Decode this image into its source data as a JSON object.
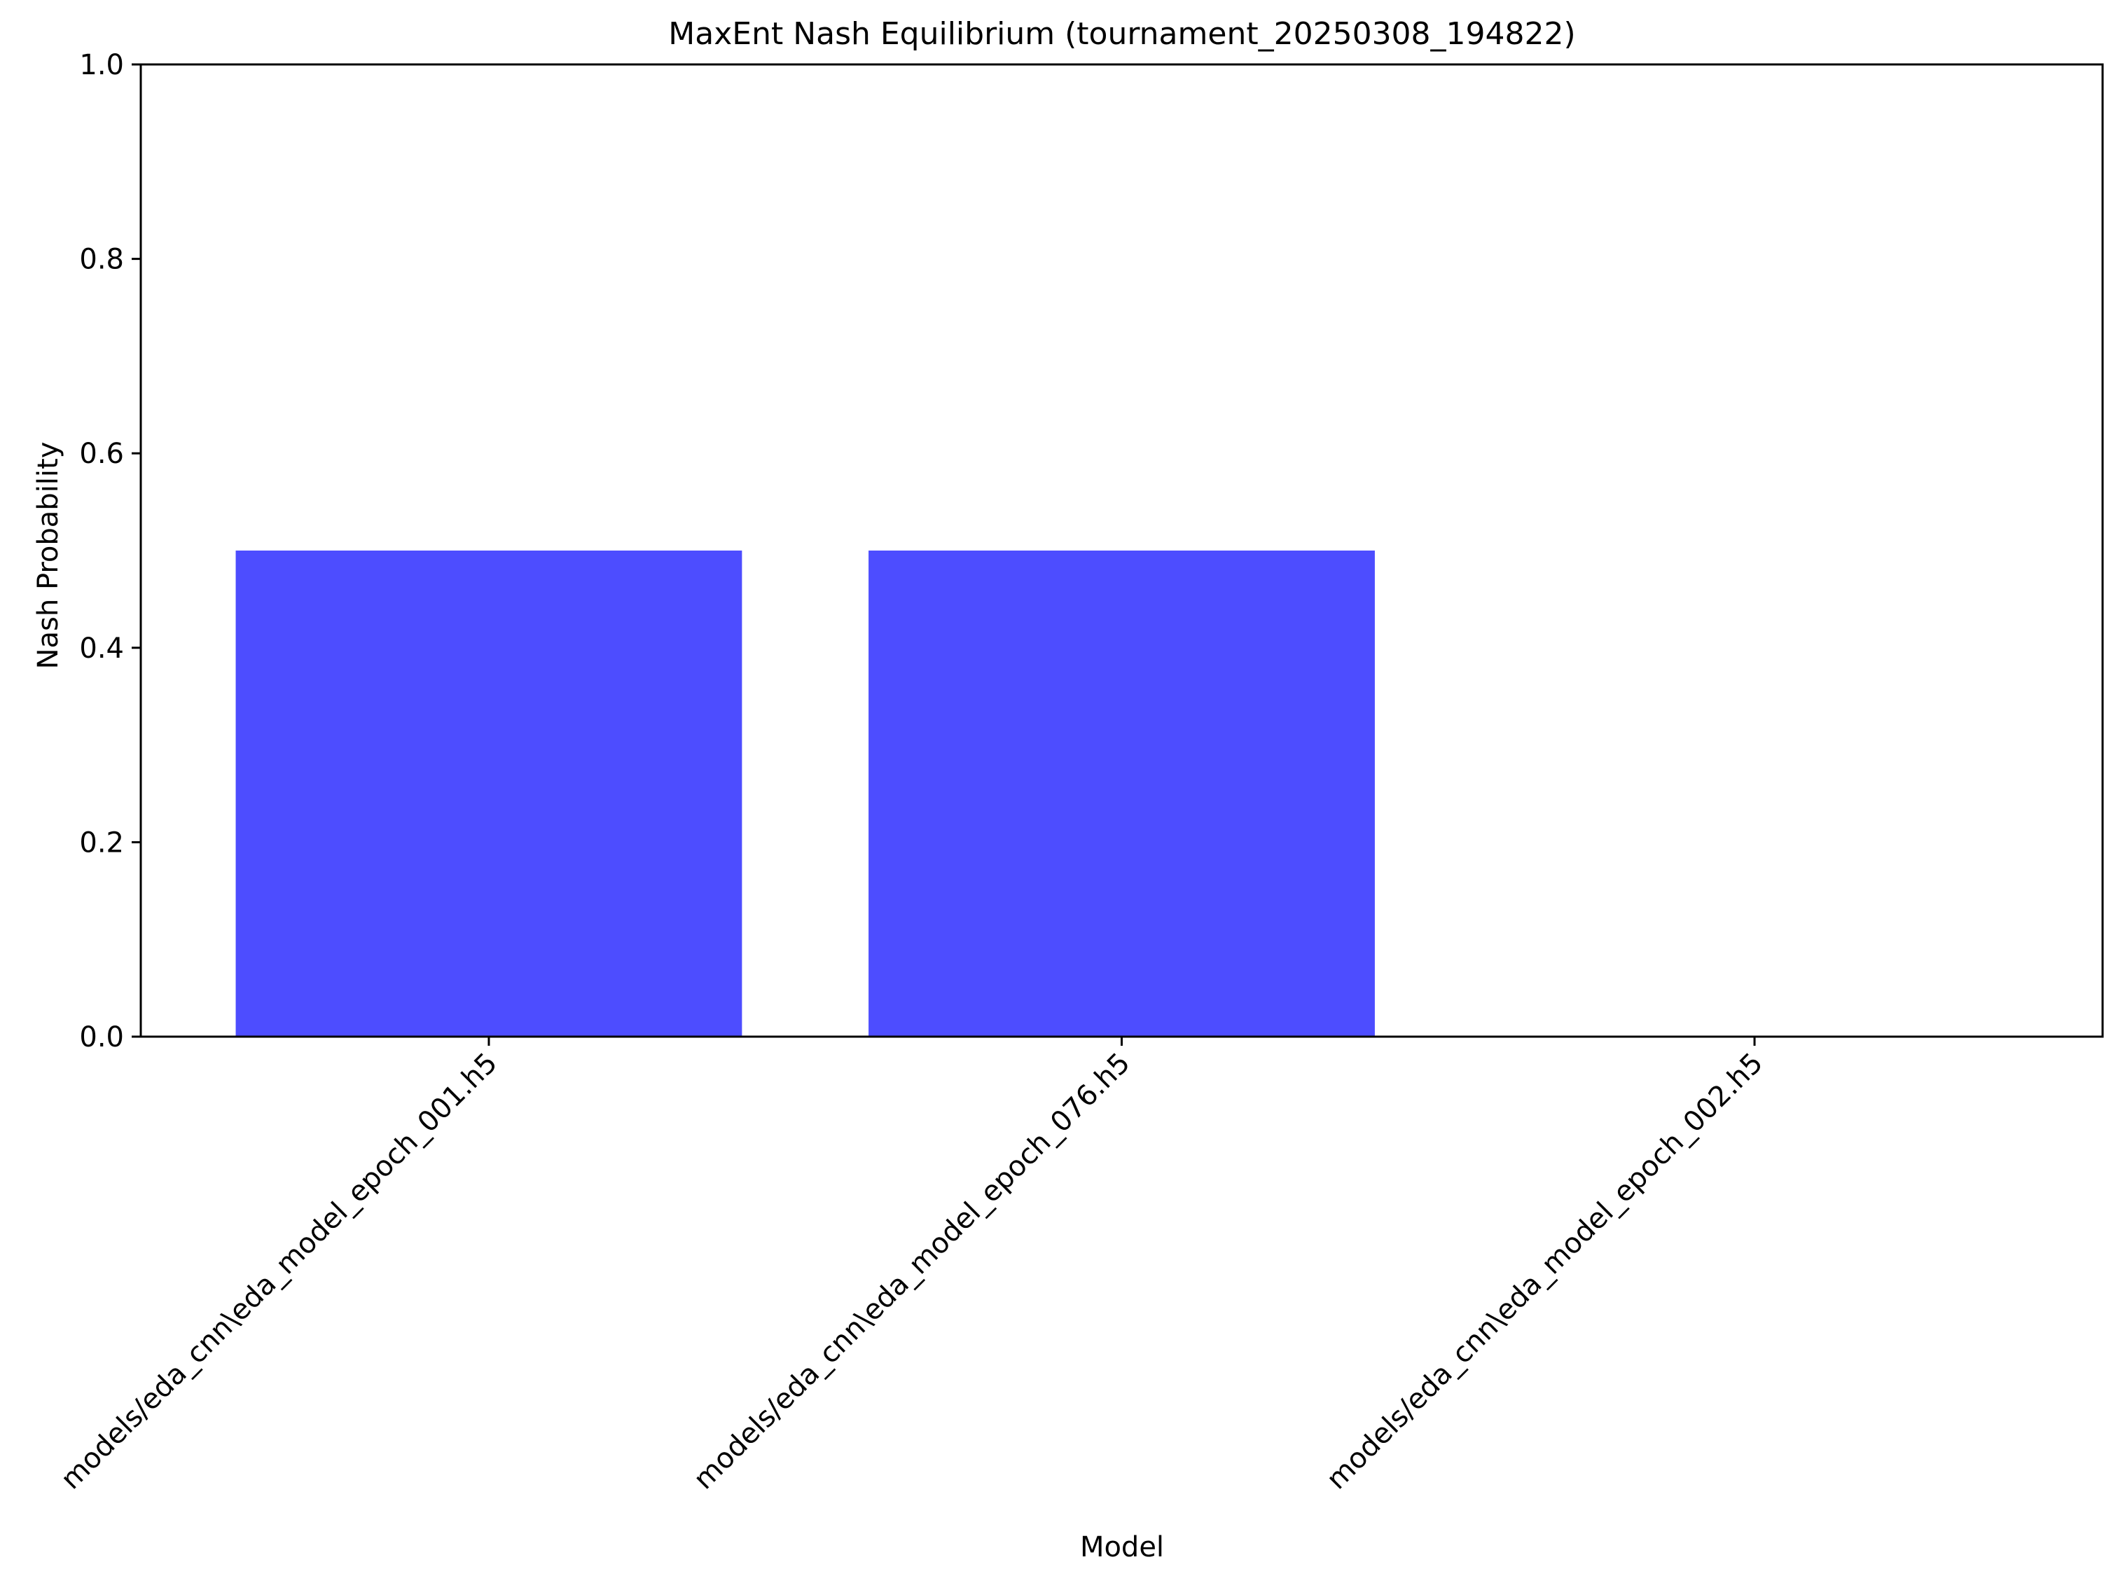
{
  "chart_data": {
    "type": "bar",
    "title": "MaxEnt Nash Equilibrium (tournament_20250308_194822)",
    "xlabel": "Model",
    "ylabel": "Nash Probability",
    "categories": [
      "models/eda_cnn\\eda_model_epoch_001.h5",
      "models/eda_cnn\\eda_model_epoch_076.h5",
      "models/eda_cnn\\eda_model_epoch_002.h5"
    ],
    "values": [
      0.5,
      0.5,
      0.0
    ],
    "ylim": [
      0,
      1
    ],
    "yticks": [
      "0.0",
      "0.2",
      "0.4",
      "0.6",
      "0.8",
      "1.0"
    ],
    "bar_color": "#4d4dff",
    "grid": false,
    "legend": "none"
  }
}
